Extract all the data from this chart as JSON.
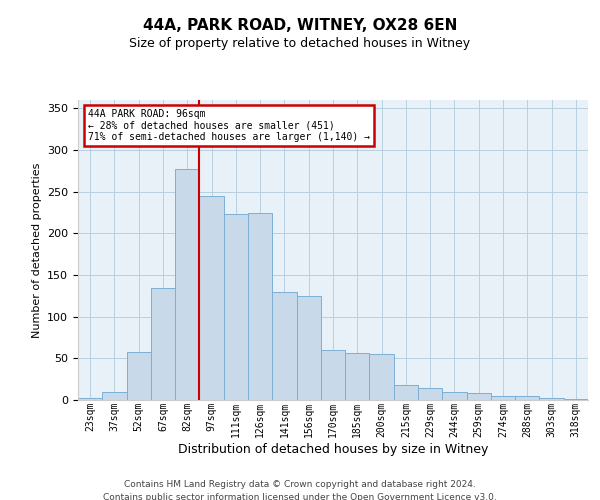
{
  "title1": "44A, PARK ROAD, WITNEY, OX28 6EN",
  "title2": "Size of property relative to detached houses in Witney",
  "xlabel": "Distribution of detached houses by size in Witney",
  "ylabel": "Number of detached properties",
  "categories": [
    "23sqm",
    "37sqm",
    "52sqm",
    "67sqm",
    "82sqm",
    "97sqm",
    "111sqm",
    "126sqm",
    "141sqm",
    "156sqm",
    "170sqm",
    "185sqm",
    "200sqm",
    "215sqm",
    "229sqm",
    "244sqm",
    "259sqm",
    "274sqm",
    "288sqm",
    "303sqm",
    "318sqm"
  ],
  "values": [
    3,
    10,
    58,
    135,
    277,
    245,
    223,
    225,
    130,
    125,
    60,
    57,
    55,
    18,
    15,
    10,
    8,
    5,
    5,
    2,
    1
  ],
  "bar_color": "#c8d9ea",
  "bar_edge_color": "#7bafd4",
  "annotation_line1": "44A PARK ROAD: 96sqm",
  "annotation_line2": "← 28% of detached houses are smaller (451)",
  "annotation_line3": "71% of semi-detached houses are larger (1,140) →",
  "annotation_box_facecolor": "#ffffff",
  "annotation_box_edgecolor": "#cc0000",
  "footer1": "Contains HM Land Registry data © Crown copyright and database right 2024.",
  "footer2": "Contains public sector information licensed under the Open Government Licence v3.0.",
  "ylim": [
    0,
    360
  ],
  "yticks": [
    0,
    50,
    100,
    150,
    200,
    250,
    300,
    350
  ],
  "grid_color": "#b8cfe0",
  "plot_bg_color": "#e8f0f8",
  "vline_color": "#cc0000",
  "vline_x": 4.5,
  "title1_fontsize": 11,
  "title2_fontsize": 9,
  "ylabel_fontsize": 8,
  "xlabel_fontsize": 9,
  "tick_fontsize": 7,
  "ann_fontsize": 7,
  "footer_fontsize": 6.5
}
